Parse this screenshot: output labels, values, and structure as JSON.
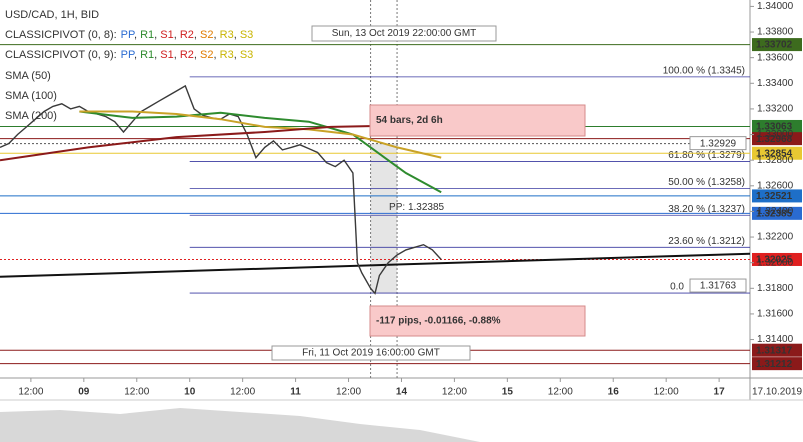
{
  "chart_data": {
    "type": "line",
    "title": "USD/CAD, 1H, BID",
    "indicators": [
      {
        "label": "CLASSICPIVOT (0, 8):",
        "items": [
          {
            "name": "PP",
            "color": "#2a6bd1"
          },
          {
            "name": "R1",
            "color": "#2d8a2d"
          },
          {
            "name": "S1",
            "color": "#d02020"
          },
          {
            "name": "R2",
            "color": "#d02020"
          },
          {
            "name": "S2",
            "color": "#e07b00"
          },
          {
            "name": "R3",
            "color": "#c8b400"
          },
          {
            "name": "S3",
            "color": "#c8b400"
          }
        ]
      },
      {
        "label": "CLASSICPIVOT (0, 9):",
        "items": [
          {
            "name": "PP",
            "color": "#2a6bd1"
          },
          {
            "name": "R1",
            "color": "#2d8a2d"
          },
          {
            "name": "S1",
            "color": "#d02020"
          },
          {
            "name": "R2",
            "color": "#d02020"
          },
          {
            "name": "S2",
            "color": "#e07b00"
          },
          {
            "name": "R3",
            "color": "#c8b400"
          },
          {
            "name": "S3",
            "color": "#c8b400"
          }
        ]
      }
    ],
    "xlim": [
      0,
      170
    ],
    "xticks": [
      {
        "value": 7,
        "label": "12:00"
      },
      {
        "value": 19,
        "label": "09"
      },
      {
        "value": 31,
        "label": "12:00"
      },
      {
        "value": 43,
        "label": "10"
      },
      {
        "value": 55,
        "label": "12:00"
      },
      {
        "value": 67,
        "label": "11"
      },
      {
        "value": 79,
        "label": "12:00"
      },
      {
        "value": 91,
        "label": "14"
      },
      {
        "value": 103,
        "label": "12:00"
      },
      {
        "value": 115,
        "label": "15"
      },
      {
        "value": 127,
        "label": "12:00"
      },
      {
        "value": 139,
        "label": "16"
      },
      {
        "value": 151,
        "label": "12:00"
      },
      {
        "value": 163,
        "label": "17"
      }
    ],
    "x_corner_label": "17.10.2019",
    "ylim": [
      1.311,
      1.3405
    ],
    "yticks": [
      {
        "value": 1.314,
        "label": "1.31400"
      },
      {
        "value": 1.316,
        "label": "1.31600"
      },
      {
        "value": 1.318,
        "label": "1.31800"
      },
      {
        "value": 1.32,
        "label": "1.32000"
      },
      {
        "value": 1.322,
        "label": "1.32200"
      },
      {
        "value": 1.324,
        "label": "1.32400"
      },
      {
        "value": 1.326,
        "label": "1.32600"
      },
      {
        "value": 1.328,
        "label": "1.32800"
      },
      {
        "value": 1.33,
        "label": "1.33000"
      },
      {
        "value": 1.332,
        "label": "1.33200"
      },
      {
        "value": 1.334,
        "label": "1.33400"
      },
      {
        "value": 1.336,
        "label": "1.33600"
      },
      {
        "value": 1.338,
        "label": "1.33800"
      },
      {
        "value": 1.34,
        "label": "1.34000"
      }
    ],
    "grid": false,
    "series": [
      {
        "color": "#3a3a3a",
        "x": [
          0,
          2,
          4,
          6,
          8,
          10,
          12,
          14,
          16,
          18,
          20,
          22,
          24,
          26,
          28,
          30,
          32,
          34,
          36,
          38,
          40,
          42,
          44,
          46,
          48,
          50,
          52,
          54,
          56,
          58,
          60,
          62,
          64,
          66,
          68,
          70,
          72,
          74,
          76,
          78,
          80,
          81,
          82,
          84,
          85,
          86,
          88,
          90,
          92,
          94,
          96,
          98,
          100
        ],
        "values": [
          1.329,
          1.3293,
          1.33,
          1.3306,
          1.3312,
          1.3318,
          1.3322,
          1.3324,
          1.332,
          1.3322,
          1.3318,
          1.3316,
          1.3314,
          1.331,
          1.3302,
          1.331,
          1.3318,
          1.3322,
          1.3326,
          1.333,
          1.3334,
          1.3338,
          1.332,
          1.3315,
          1.3313,
          1.3312,
          1.3316,
          1.3314,
          1.33,
          1.3282,
          1.329,
          1.3295,
          1.3288,
          1.329,
          1.3292,
          1.3289,
          1.3286,
          1.3278,
          1.3275,
          1.328,
          1.327,
          1.32,
          1.3192,
          1.318,
          1.3176,
          1.319,
          1.32,
          1.3206,
          1.321,
          1.3212,
          1.3214,
          1.321,
          1.32025
        ]
      },
      {
        "name": "SMA (50)",
        "color": "#2e8b2e",
        "x": [
          18,
          30,
          40,
          50,
          60,
          70,
          80,
          86,
          92,
          100
        ],
        "values": [
          1.3318,
          1.3313,
          1.3314,
          1.3317,
          1.3313,
          1.331,
          1.33,
          1.3285,
          1.327,
          1.3255
        ]
      },
      {
        "name": "SMA (100)",
        "color": "#c9a227",
        "x": [
          18,
          30,
          40,
          50,
          60,
          70,
          80,
          90,
          100
        ],
        "values": [
          1.3318,
          1.3318,
          1.3316,
          1.3312,
          1.3306,
          1.3304,
          1.33,
          1.329,
          1.3282
        ]
      },
      {
        "name": "SMA (200)",
        "color": "#8b1a1a",
        "x": [
          0,
          20,
          40,
          60,
          75,
          90,
          100
        ],
        "values": [
          1.328,
          1.329,
          1.3298,
          1.3302,
          1.3306,
          1.3307,
          1.3306
        ]
      }
    ],
    "trendline": {
      "color": "#111111",
      "x": [
        0,
        170
      ],
      "values": [
        1.3189,
        1.3207
      ]
    },
    "levels": [
      {
        "value": 1.33702,
        "color": "#3d6b1e",
        "text_color": "#ffffff"
      },
      {
        "value": 1.33063,
        "color": "#2d7d2d",
        "text_color": "#ffffff"
      },
      {
        "value": 1.32968,
        "color": "#8b1a1a",
        "text_color": "#ffffff"
      },
      {
        "value": 1.32854,
        "color": "#e8c832",
        "text_color": "#333333"
      },
      {
        "value": 1.32521,
        "color": "#1e6fc8",
        "text_color": "#ffffff"
      },
      {
        "value": 1.32385,
        "color": "#2a6bd1",
        "text_color": "#ffffff",
        "tag": "PP: 1.32385"
      },
      {
        "value": 1.32025,
        "color": "#e02020",
        "text_color": "#ffffff",
        "style": "dotted"
      },
      {
        "value": 1.31317,
        "color": "#8b1a1a",
        "text_color": "#ffffff"
      },
      {
        "value": 1.31212,
        "color": "#8b1a1a",
        "text_color": "#ffffff"
      }
    ],
    "fibonacci": {
      "color": "#3a3aa0",
      "start": 43,
      "levels": [
        {
          "value": 1.3345,
          "label": "100.00 % (1.3345)"
        },
        {
          "value": 1.3279,
          "label": "61.80 % (1.3279)"
        },
        {
          "value": 1.3258,
          "label": "50.00 % (1.3258)"
        },
        {
          "value": 1.3237,
          "label": "38.20 % (1.3237)"
        },
        {
          "value": 1.3212,
          "label": "23.60 % (1.3212)"
        },
        {
          "value": 1.31763,
          "label": "0.0"
        }
      ]
    },
    "crosshair": {
      "value": 1.32929
    },
    "measure": {
      "start": {
        "x": 84,
        "label": "Fri, 11 Oct 2019 16:00:00 GMT"
      },
      "end": {
        "x": 90,
        "label": "Sun, 13 Oct 2019 22:00:00 GMT"
      },
      "bars_label": "54 bars, 2d 6h",
      "change_label": "-117 pips, -0.01166, -0.88%"
    }
  }
}
